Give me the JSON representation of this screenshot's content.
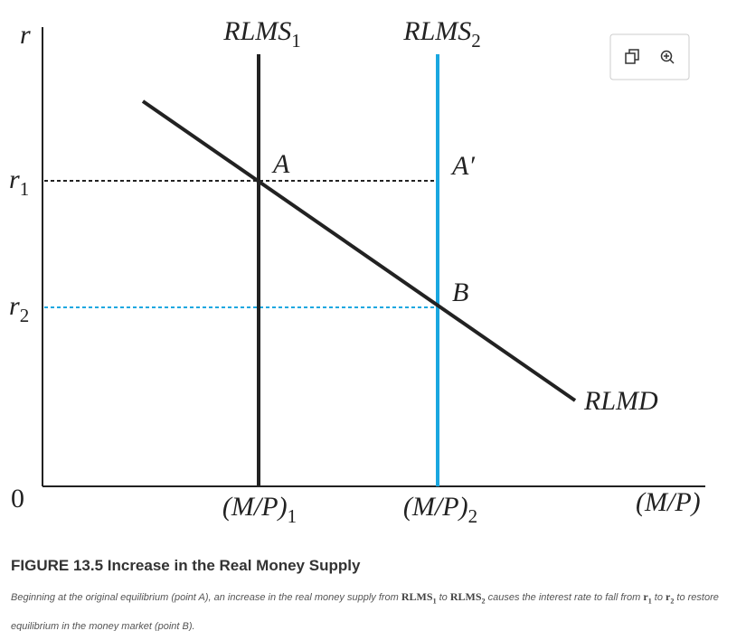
{
  "axes": {
    "y_label": "r",
    "origin": "0",
    "x_label": "(M/P)"
  },
  "y_levels": [
    {
      "base": "r",
      "sub": "1"
    },
    {
      "base": "r",
      "sub": "2"
    }
  ],
  "curves": {
    "rlms1": {
      "base": "RLMS",
      "sub": "1"
    },
    "rlms2": {
      "base": "RLMS",
      "sub": "2"
    },
    "rlmd": "RLMD"
  },
  "points": [
    "A",
    "A′",
    "B"
  ],
  "x_levels": [
    {
      "base": "(M/P)",
      "sub": "1"
    },
    {
      "base": "(M/P)",
      "sub": "2"
    }
  ],
  "caption": {
    "title": "FIGURE 13.5 Increase in the Real Money Supply",
    "runs": [
      "Beginning at the original equilibrium (point A), an increase in the real money supply from ",
      {
        "base": "RLMS",
        "sub": "1"
      },
      " to ",
      {
        "base": "RLMS",
        "sub": "2"
      },
      " causes the interest rate to fall from ",
      {
        "base": "r",
        "sub": "1"
      },
      " to ",
      {
        "base": "r",
        "sub": "2"
      },
      " to restore equilibrium in the money market (point B)."
    ]
  }
}
